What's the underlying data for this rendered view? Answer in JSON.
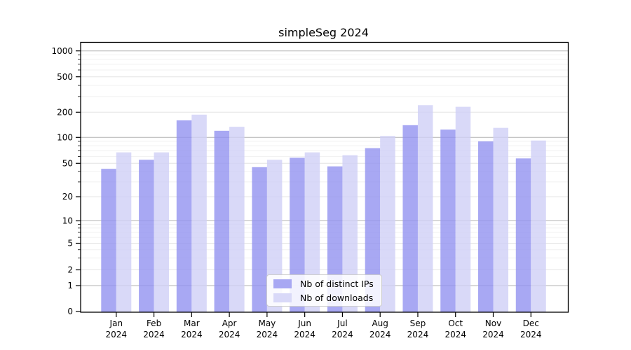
{
  "chart_data": {
    "type": "bar",
    "title": "simpleSeg 2024",
    "categories": [
      "Jan",
      "Feb",
      "Mar",
      "Apr",
      "May",
      "Jun",
      "Jul",
      "Aug",
      "Sep",
      "Oct",
      "Nov",
      "Dec"
    ],
    "category_year": "2024",
    "series": [
      {
        "name": "Nb of distinct IPs",
        "color": "#9292f0",
        "fill_opacity": 0.8,
        "swatch_color": "#a8a8f3",
        "values": [
          43,
          55,
          160,
          120,
          45,
          58,
          46,
          75,
          140,
          124,
          90,
          57
        ]
      },
      {
        "name": "Nb of downloads",
        "color": "#cfcff6",
        "fill_opacity": 0.8,
        "swatch_color": "#d9d9f8",
        "values": [
          67,
          67,
          187,
          134,
          55,
          67,
          62,
          104,
          240,
          230,
          130,
          92
        ]
      }
    ],
    "y_axis": {
      "scale": "symlog-like",
      "ticks": [
        0,
        1,
        2,
        5,
        10,
        20,
        50,
        100,
        200,
        500,
        1000
      ],
      "dark_gridlines": [
        1,
        10,
        100,
        1000
      ],
      "minor_gridlines": [
        3,
        4,
        6,
        7,
        8,
        9,
        30,
        40,
        60,
        70,
        80,
        90,
        300,
        400,
        600,
        700,
        800,
        900
      ],
      "anchors": [
        [
          0,
          445
        ],
        [
          1,
          408
        ],
        [
          2,
          385.5
        ],
        [
          5,
          347.5
        ],
        [
          10,
          315.5
        ],
        [
          20,
          281
        ],
        [
          50,
          233.3
        ],
        [
          100,
          196.3
        ],
        [
          200,
          160.3
        ],
        [
          500,
          109.7
        ],
        [
          1000,
          72.7
        ]
      ],
      "ylim": [
        0,
        1000
      ]
    },
    "x_axis": {
      "label_line2": "2024"
    },
    "legend": {
      "position": "lower-center"
    },
    "grid": true
  }
}
